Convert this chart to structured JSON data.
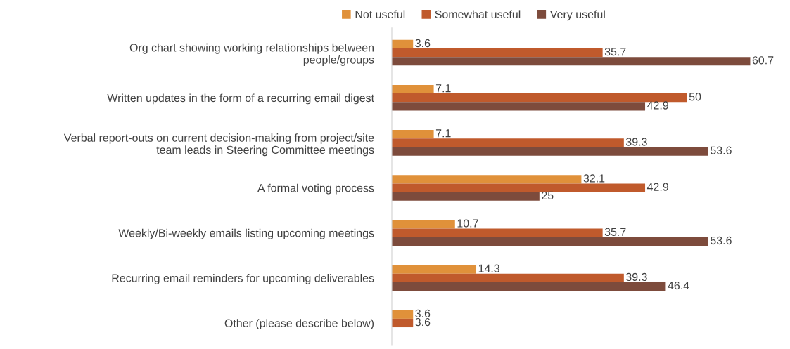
{
  "chart_data": {
    "type": "bar",
    "orientation": "horizontal",
    "data_labels": true,
    "legend": "top",
    "grid": false,
    "tick_labels": "y",
    "categories": [
      "Org chart showing working relationships between\npeople/groups",
      "Written updates in the form of a recurring email digest",
      "Verbal report-outs on current decision-making from project/site\nteam leads in Steering Committee meetings",
      "A formal voting process",
      "Weekly/Bi-weekly emails listing upcoming meetings",
      "Recurring email reminders for upcoming deliverables",
      "Other (please describe below)"
    ],
    "series": [
      {
        "name": "Not useful",
        "color": "#e0913a",
        "values": [
          3.6,
          7.1,
          7.1,
          32.1,
          10.7,
          14.3,
          3.6
        ]
      },
      {
        "name": "Somewhat useful",
        "color": "#c05a2c",
        "values": [
          35.7,
          50,
          39.3,
          42.9,
          35.7,
          39.3,
          3.6
        ]
      },
      {
        "name": "Very useful",
        "color": "#7d4b3c",
        "values": [
          60.7,
          42.9,
          53.6,
          25,
          53.6,
          46.4,
          null
        ]
      }
    ]
  }
}
